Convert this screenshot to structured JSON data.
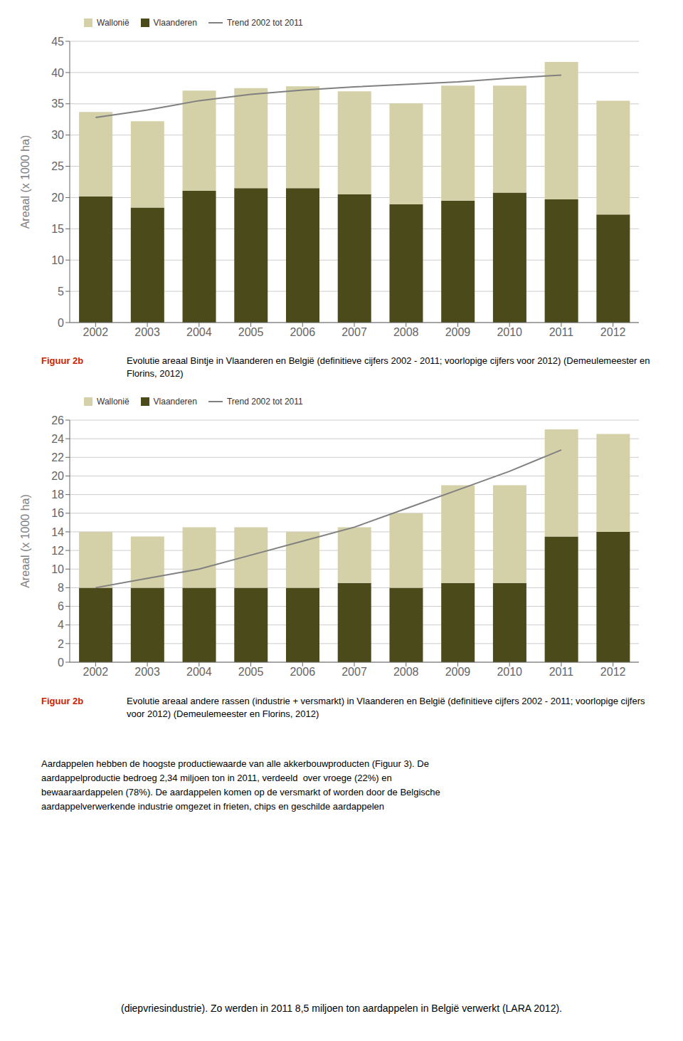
{
  "chart_data": [
    {
      "type": "bar",
      "stacked": true,
      "grid": true,
      "legend": "upper left",
      "categories": [
        "2002",
        "2003",
        "2004",
        "2005",
        "2006",
        "2007",
        "2008",
        "2009",
        "2010",
        "2011",
        "2012"
      ],
      "series": [
        {
          "name": "Wallonië",
          "type": "bar",
          "color": "#d4d0a8",
          "values": [
            13.5,
            13.8,
            16.0,
            16.0,
            16.3,
            16.5,
            16.2,
            18.4,
            17.1,
            22.0,
            18.2
          ]
        },
        {
          "name": "Vlaanderen",
          "type": "bar",
          "color": "#4a4a1a",
          "values": [
            20.2,
            18.4,
            21.1,
            21.5,
            21.5,
            20.5,
            18.9,
            19.5,
            20.8,
            19.7,
            17.3
          ]
        },
        {
          "name": "Trend 2002 tot 2011",
          "type": "line",
          "line_style": "solid",
          "color": "#808080",
          "values": [
            32.8,
            34.0,
            35.5,
            36.5,
            37.2,
            37.7,
            38.1,
            38.5,
            39.1,
            39.6,
            null
          ]
        }
      ],
      "ylim": [
        0,
        45
      ],
      "yticks": [
        0,
        5,
        10,
        15,
        20,
        25,
        30,
        35,
        40,
        45
      ],
      "ylabel": "Areaal (x 1000 ha)",
      "annotations": [
        "Figuur 2b",
        "Evolutie areaal Bintje in Vlaanderen en België (definitieve cijfers 2002 - 2011; voorlopige cijfers voor 2012) (Demeulemeester en Florins, 2012)"
      ]
    },
    {
      "type": "bar",
      "stacked": true,
      "grid": true,
      "legend": "upper left",
      "categories": [
        "2002",
        "2003",
        "2004",
        "2005",
        "2006",
        "2007",
        "2008",
        "2009",
        "2010",
        "2011",
        "2012"
      ],
      "series": [
        {
          "name": "Wallonië",
          "type": "bar",
          "color": "#d4d0a8",
          "values": [
            6.0,
            5.5,
            6.5,
            6.5,
            6.0,
            6.0,
            8.0,
            10.5,
            10.5,
            11.5,
            10.5
          ]
        },
        {
          "name": "Vlaanderen",
          "type": "bar",
          "color": "#4a4a1a",
          "values": [
            8.0,
            8.0,
            8.0,
            8.0,
            8.0,
            8.5,
            8.0,
            8.5,
            8.5,
            13.5,
            14.0
          ]
        },
        {
          "name": "Trend 2002 tot 2011",
          "type": "line",
          "line_style": "solid",
          "color": "#808080",
          "values": [
            8.0,
            9.0,
            10.0,
            11.5,
            13.0,
            14.5,
            16.5,
            18.5,
            20.5,
            22.8,
            null
          ]
        }
      ],
      "ylim": [
        0,
        26
      ],
      "yticks": [
        0,
        2,
        4,
        6,
        8,
        10,
        12,
        14,
        16,
        18,
        20,
        22,
        24,
        26
      ],
      "ylabel": "Areaal (x 1000 ha)",
      "annotations": [
        "Figuur 2b",
        "Evolutie areaal andere rassen (industrie + versmarkt) in Vlaanderen en België (definitieve cijfers 2002 - 2011; voorlopige cijfers voor 2012) (Demeulemeester en Florins, 2012)"
      ]
    }
  ],
  "annotations": [
    "Aardappelen hebben de hoogste productiewaarde van alle akkerbouwproducten (Figuur 3). De",
    "aardappelproductie bedroeg 2,34 miljoen ton in 2011, verdeeld  over vroege (22%) en",
    "bewaaraardappelen (78%). De aardappelen komen op de versmarkt of worden door de Belgische",
    "aardappelverwerkende industrie omgezet in frieten, chips en geschilde aardappelen",
    "(diepvriesindustrie). Zo werden in 2011 8,5 miljoen ton aardappelen in België verwerkt (LARA 2012)."
  ]
}
